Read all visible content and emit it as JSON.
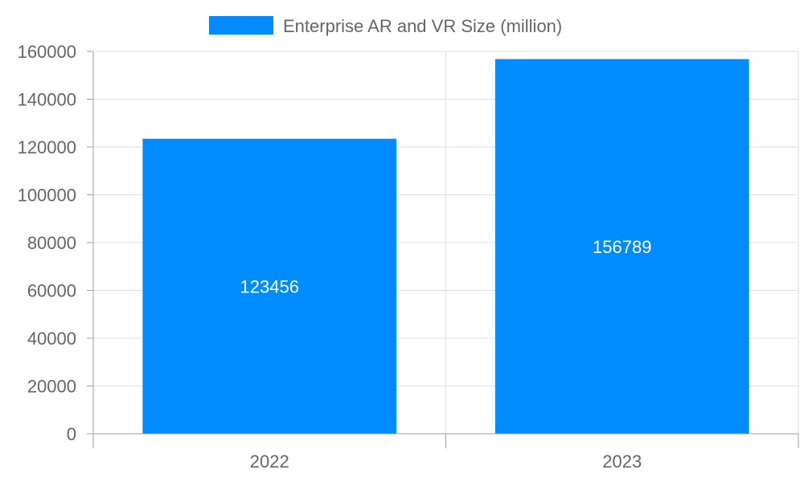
{
  "chart_data": {
    "type": "bar",
    "categories": [
      "2022",
      "2023"
    ],
    "series": [
      {
        "name": "Enterprise AR and VR Size (million)",
        "values": [
          123456,
          156789
        ],
        "color": "#008cff"
      }
    ],
    "data_labels": [
      "123456",
      "156789"
    ],
    "ylim": [
      0,
      160000
    ],
    "yticks": [
      "0",
      "20000",
      "40000",
      "60000",
      "80000",
      "100000",
      "120000",
      "140000",
      "160000"
    ],
    "grid": true,
    "legend_position": "top",
    "xlabel": "",
    "ylabel": ""
  }
}
